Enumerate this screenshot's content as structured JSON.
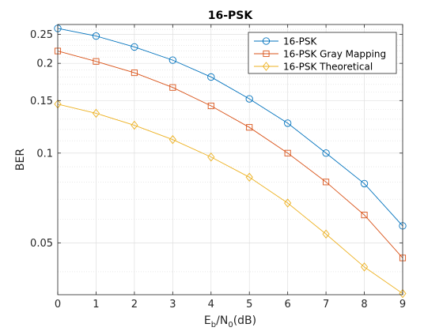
{
  "chart_data": {
    "type": "line",
    "title": "16-PSK",
    "xlabel": {
      "base": "E",
      "sub1": "b",
      "mid": "/N",
      "sub2": "0",
      "tail": "(dB)"
    },
    "ylabel": "BER",
    "x": [
      0,
      1,
      2,
      3,
      4,
      5,
      6,
      7,
      8,
      9
    ],
    "xlim": [
      0,
      9
    ],
    "ylim": [
      0.0335,
      0.27
    ],
    "yscale": "log",
    "grid": true,
    "minor_grid": true,
    "legend_position": "top-right",
    "x_ticks": [
      0,
      1,
      2,
      3,
      4,
      5,
      6,
      7,
      8,
      9
    ],
    "y_ticks": [
      {
        "value": 0.05,
        "label": "0.05"
      },
      {
        "value": 0.1,
        "label": "0.1"
      },
      {
        "value": 0.15,
        "label": "0.15"
      },
      {
        "value": 0.2,
        "label": "0.2"
      },
      {
        "value": 0.25,
        "label": "0.25"
      }
    ],
    "y_minor_ticks": [
      0.04,
      0.06,
      0.07,
      0.08,
      0.09,
      0.11,
      0.12,
      0.13,
      0.14,
      0.16,
      0.17,
      0.18,
      0.19,
      0.21,
      0.22,
      0.23,
      0.24,
      0.26
    ],
    "series": [
      {
        "name": "16-PSK",
        "color": "#0072BD",
        "marker": "circle",
        "values": [
          0.262,
          0.247,
          0.227,
          0.205,
          0.18,
          0.152,
          0.126,
          0.1,
          0.079,
          0.057
        ]
      },
      {
        "name": "16-PSK Gray Mapping",
        "color": "#D95319",
        "marker": "square",
        "values": [
          0.22,
          0.203,
          0.186,
          0.166,
          0.144,
          0.122,
          0.1,
          0.08,
          0.062,
          0.0445
        ]
      },
      {
        "name": "16-PSK Theoretical",
        "color": "#EDB120",
        "marker": "diamond",
        "values": [
          0.146,
          0.136,
          0.124,
          0.111,
          0.097,
          0.083,
          0.068,
          0.0535,
          0.0415,
          0.0338
        ]
      }
    ]
  }
}
